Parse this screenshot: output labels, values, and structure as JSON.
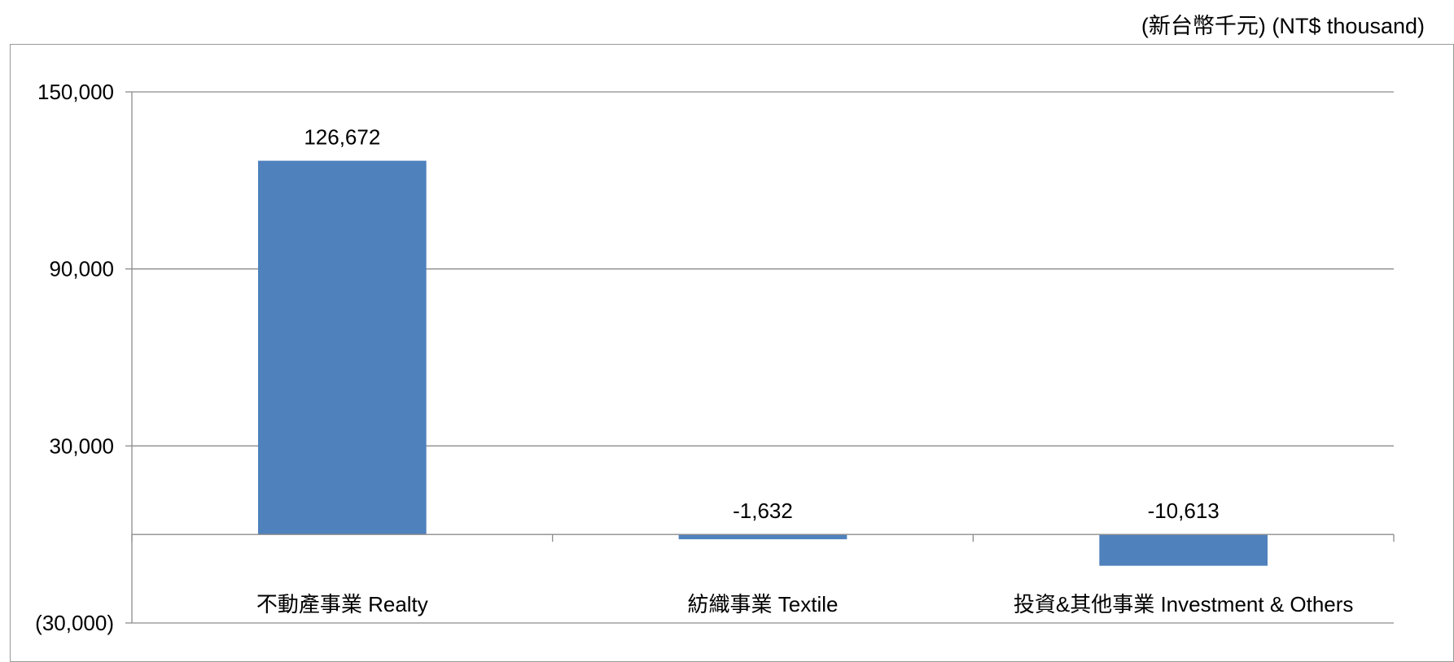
{
  "header": {
    "unit_label": "(新台幣千元) (NT$ thousand)"
  },
  "chart_data": {
    "type": "bar",
    "categories": [
      "不動產事業 Realty",
      "紡織事業 Textile",
      "投資&其他事業 Investment & Others"
    ],
    "values": [
      126672,
      -1632,
      -10613
    ],
    "data_labels": [
      "126,672",
      "-1,632",
      "-10,613"
    ],
    "y_ticks": [
      150000,
      90000,
      30000,
      -30000
    ],
    "y_tick_labels": [
      "150,000",
      "90,000",
      "30,000",
      "(30,000)"
    ],
    "ylim": [
      -30000,
      150000
    ],
    "grid": true,
    "legend": "none",
    "bar_color": "#4f81bd"
  }
}
